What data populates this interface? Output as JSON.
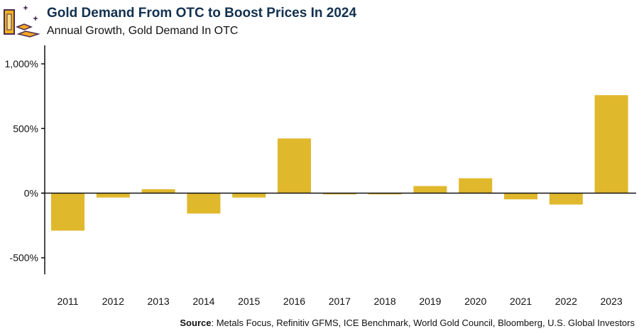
{
  "header": {
    "title": "Gold Demand From OTC to Boost Prices In 2024",
    "subtitle": "Annual Growth, Gold Demand In OTC"
  },
  "source": {
    "label": "Source",
    "text": ": Metals Focus, Refinitiv GFMS, ICE Benchmark, World Gold Council, Bloomberg, U.S. Global Investors"
  },
  "colors": {
    "bar": "#E0B82C",
    "title": "#12304F"
  },
  "chart_data": {
    "type": "bar",
    "title": "Gold Demand From OTC to Boost Prices In 2024",
    "subtitle": "Annual Growth, Gold Demand In OTC",
    "categories": [
      "2011",
      "2012",
      "2013",
      "2014",
      "2015",
      "2016",
      "2017",
      "2018",
      "2019",
      "2020",
      "2021",
      "2022",
      "2023"
    ],
    "values": [
      -290,
      -34,
      30,
      -158,
      -34,
      423,
      -10,
      -10,
      55,
      115,
      -48,
      -88,
      758
    ],
    "yticks": [
      -500,
      0,
      500,
      1000
    ],
    "ytick_labels": [
      "-500%",
      "0%",
      "500%",
      "1,000%"
    ],
    "ylim": [
      -620,
      1150
    ],
    "grid": false,
    "xlabel": "",
    "ylabel": ""
  }
}
